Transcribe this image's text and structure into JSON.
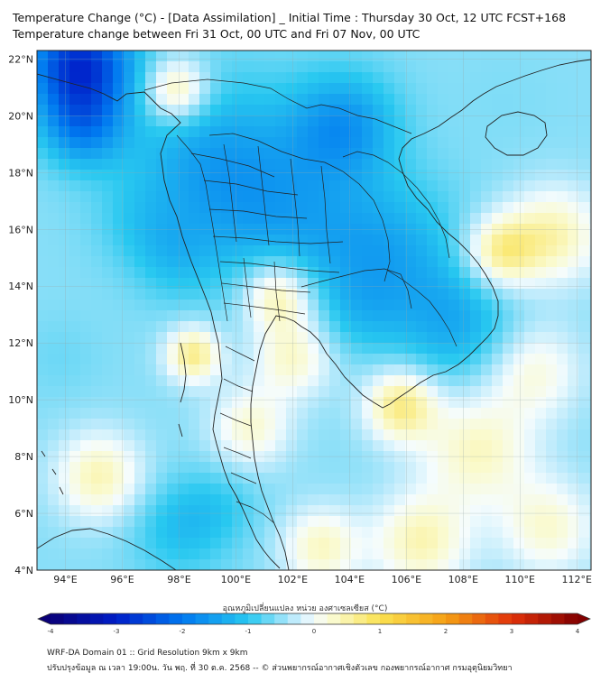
{
  "title": {
    "line1": "Temperature Change (°C) - [Data Assimilation] _ Initial Time : Thursday 30 Oct, 12 UTC FCST+168",
    "line2": "Temperature change between Fri 31 Oct, 00 UTC and Fri 07 Nov, 00 UTC"
  },
  "map": {
    "lat_labels": [
      "22°N",
      "20°N",
      "18°N",
      "16°N",
      "14°N",
      "12°N",
      "10°N",
      "8°N",
      "6°N",
      "4°N"
    ],
    "lon_labels": [
      "94°E",
      "96°E",
      "98°E",
      "100°E",
      "102°E",
      "104°E",
      "106°E",
      "108°E",
      "110°E",
      "112°E"
    ],
    "lat_range": [
      4,
      22.3
    ],
    "lon_range": [
      93,
      112.5
    ],
    "anomalies": [
      {
        "lon": 94.5,
        "lat": 21.8,
        "value": -3.2,
        "spread": 1.3
      },
      {
        "lon": 94.6,
        "lat": 19.6,
        "value": -1.8,
        "spread": 1.0
      },
      {
        "lon": 99.2,
        "lat": 18.2,
        "value": -1.6,
        "spread": 2.2
      },
      {
        "lon": 103.8,
        "lat": 19.7,
        "value": -1.7,
        "spread": 1.3
      },
      {
        "lon": 102.2,
        "lat": 16.2,
        "value": -1.3,
        "spread": 2.2
      },
      {
        "lon": 105.5,
        "lat": 15.0,
        "value": -1.4,
        "spread": 1.8
      },
      {
        "lon": 107.8,
        "lat": 12.6,
        "value": -1.4,
        "spread": 1.4
      },
      {
        "lon": 97.8,
        "lat": 15.0,
        "value": -1.0,
        "spread": 1.0
      },
      {
        "lon": 98.0,
        "lat": 5.5,
        "value": -1.2,
        "spread": 1.2
      },
      {
        "lon": 99.5,
        "lat": 6.3,
        "value": -0.9,
        "spread": 1.0
      },
      {
        "lon": 93.8,
        "lat": 11.5,
        "value": -0.7,
        "spread": 1.0
      },
      {
        "lon": 96.5,
        "lat": 16.2,
        "value": -0.8,
        "spread": 1.0
      },
      {
        "lon": 109.5,
        "lat": 20.5,
        "value": -0.6,
        "spread": 1.2
      },
      {
        "lon": 104.5,
        "lat": 13.0,
        "value": -0.9,
        "spread": 1.0
      },
      {
        "lon": 97.9,
        "lat": 20.9,
        "value": 0.9,
        "spread": 0.8
      },
      {
        "lon": 101.5,
        "lat": 13.7,
        "value": 0.9,
        "spread": 0.9
      },
      {
        "lon": 98.5,
        "lat": 11.6,
        "value": 0.9,
        "spread": 0.7
      },
      {
        "lon": 105.8,
        "lat": 9.8,
        "value": 0.9,
        "spread": 0.9
      },
      {
        "lon": 109.3,
        "lat": 15.2,
        "value": 0.8,
        "spread": 0.9
      },
      {
        "lon": 111.2,
        "lat": 15.8,
        "value": 0.6,
        "spread": 1.2
      },
      {
        "lon": 102.0,
        "lat": 11.5,
        "value": 0.5,
        "spread": 1.0
      },
      {
        "lon": 95.2,
        "lat": 7.3,
        "value": 0.6,
        "spread": 1.1
      },
      {
        "lon": 108.5,
        "lat": 8.2,
        "value": 0.5,
        "spread": 1.4
      },
      {
        "lon": 106.5,
        "lat": 5.0,
        "value": 0.6,
        "spread": 1.2
      },
      {
        "lon": 103.0,
        "lat": 4.8,
        "value": 0.5,
        "spread": 1.0
      },
      {
        "lon": 111.0,
        "lat": 5.5,
        "value": 0.4,
        "spread": 1.2
      },
      {
        "lon": 100.5,
        "lat": 9.0,
        "value": 0.4,
        "spread": 1.0
      },
      {
        "lon": 110.5,
        "lat": 11.0,
        "value": 0.3,
        "spread": 1.2
      }
    ]
  },
  "colorbar": {
    "title": "อุณหภูมิเปลี่ยนแปลง หน่วย องศาเซลเซียส (°C)",
    "ticks": [
      "-4",
      "-3",
      "-2",
      "-1",
      "0",
      "1",
      "2",
      "3",
      "4"
    ],
    "min": -4,
    "max": 4
  },
  "footer": {
    "line1": "WRF-DA Domain 01 :: Grid Resolution 9km x 9km",
    "line2": "ปรับปรุงข้อมูล ณ เวลา 19:00น. วัน พฤ. ที่ 30 ต.ค. 2568 -- © ส่วนพยากรณ์อากาศเชิงตัวเลข กองพยากรณ์อากาศ กรมอุตุนิยมวิทยา"
  }
}
